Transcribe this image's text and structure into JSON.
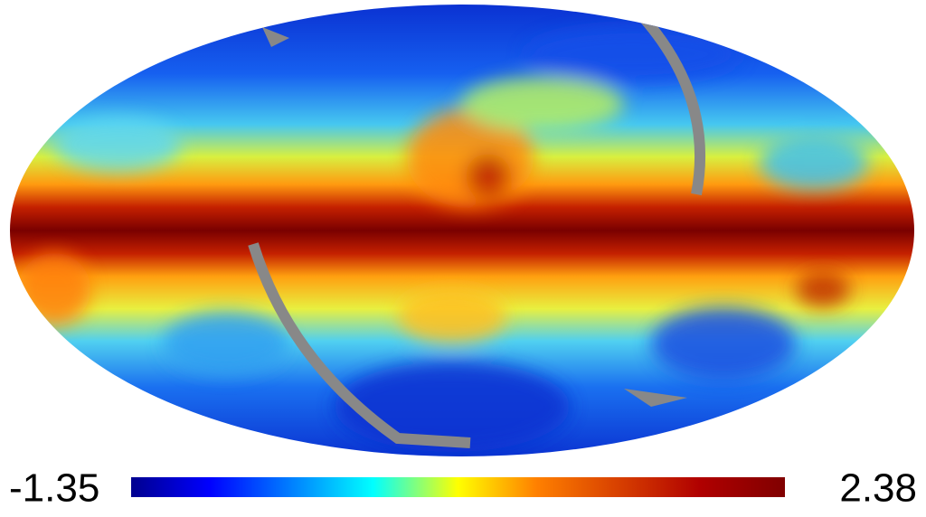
{
  "colorbar": {
    "min": -1.35,
    "max": 2.38
  }
}
